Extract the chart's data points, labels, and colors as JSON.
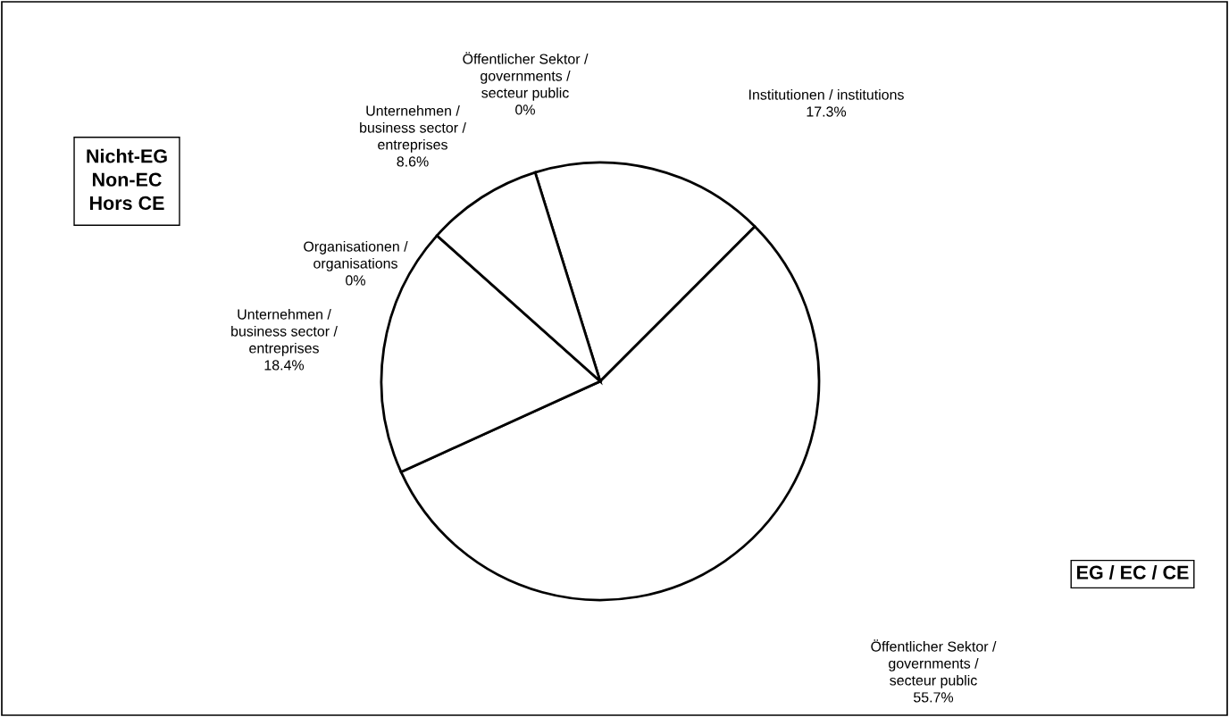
{
  "chart_data": {
    "type": "pie",
    "categories": [
      "Institutionen / institutions",
      "Öffentlicher Sektor /\ngovernments /\nsecteur public",
      "Unternehmen /\nbusiness sector /\nentreprises",
      "Organisationen /\norganisations",
      "Unternehmen /\nbusiness sector /\nentreprises",
      "Öffentlicher Sektor /\ngovernments /\nsecteur public"
    ],
    "values": [
      17.3,
      55.7,
      18.4,
      0,
      8.6,
      0
    ],
    "value_labels": [
      "17.3%",
      "55.7%",
      "18.4%",
      "0%",
      "8.6%",
      "0%"
    ],
    "colors": [
      "#ffffff",
      "#ffffff",
      "#ffffff",
      "#ffffff",
      "#ffffff",
      "#ffffff"
    ],
    "annotations": [
      "Nicht-EG\nNon-EC\nHors CE",
      "EG / EC / CE"
    ],
    "legend": false
  }
}
